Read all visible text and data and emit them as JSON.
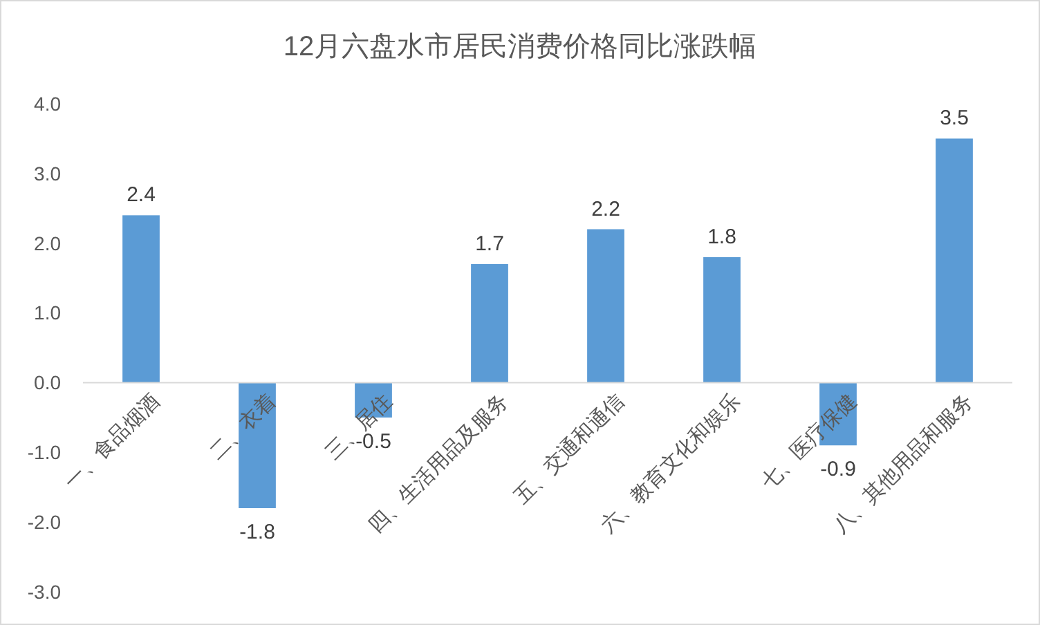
{
  "chart_data": {
    "type": "bar",
    "title": "12月六盘水市居民消费价格同比涨跌幅",
    "categories": [
      "一、食品烟酒",
      "二、衣着",
      "三、居住",
      "四、生活用品及服务",
      "五、交通和通信",
      "六、教育文化和娱乐",
      "七、医疗保健",
      "八、其他用品和服务"
    ],
    "values": [
      2.4,
      -1.8,
      -0.5,
      1.7,
      2.2,
      1.8,
      -0.9,
      3.5
    ],
    "color": "#5b9bd5",
    "ylim": [
      -3,
      4
    ],
    "yticks": [
      {
        "value": -3,
        "label": "-3.0"
      },
      {
        "value": -2,
        "label": "-2.0"
      },
      {
        "value": -1,
        "label": "-1.0"
      },
      {
        "value": 0,
        "label": "0.0"
      },
      {
        "value": 1,
        "label": "1.0"
      },
      {
        "value": 2,
        "label": "2.0"
      },
      {
        "value": 3,
        "label": "3.0"
      },
      {
        "value": 4,
        "label": "4.0"
      }
    ],
    "data_labels": true
  }
}
